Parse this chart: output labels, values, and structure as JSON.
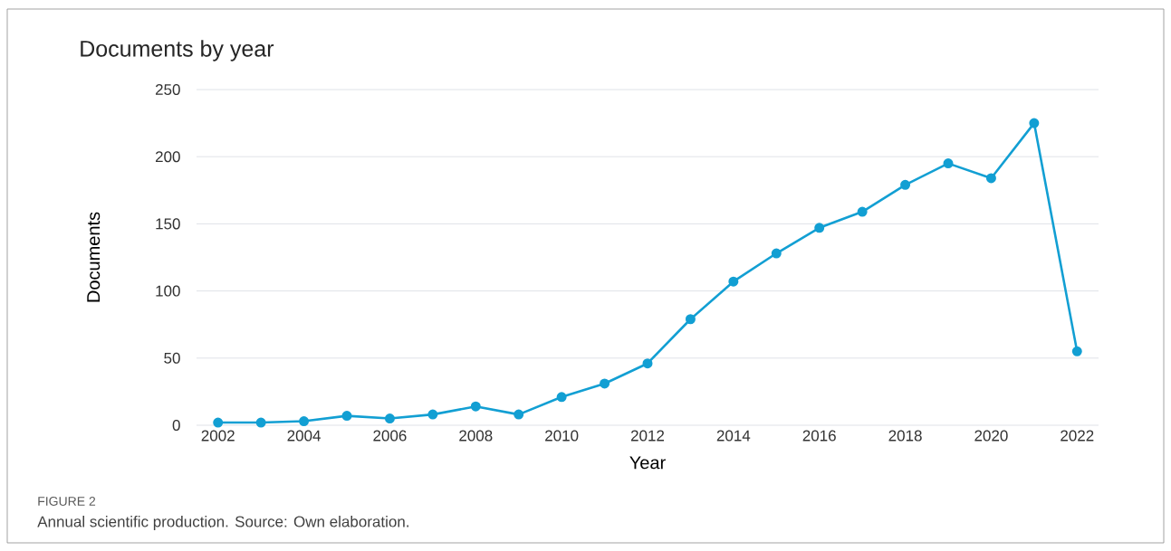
{
  "chart_data": {
    "type": "line",
    "title": "Documents by year",
    "xlabel": "Year",
    "ylabel": "Documents",
    "x": [
      2002,
      2003,
      2004,
      2005,
      2006,
      2007,
      2008,
      2009,
      2010,
      2011,
      2012,
      2013,
      2014,
      2015,
      2016,
      2017,
      2018,
      2019,
      2020,
      2021,
      2022
    ],
    "series": [
      {
        "color": "#129fd3",
        "values": [
          2,
          2,
          3,
          7,
          5,
          8,
          14,
          8,
          21,
          31,
          46,
          79,
          107,
          128,
          147,
          159,
          179,
          195,
          184,
          225,
          55
        ]
      }
    ],
    "xlim": [
      2001.5,
      2022.5
    ],
    "xticks": [
      2002,
      2004,
      2006,
      2008,
      2010,
      2012,
      2014,
      2016,
      2018,
      2020,
      2022
    ],
    "ylim": [
      0,
      250
    ],
    "yticks": [
      0,
      50,
      100,
      150,
      200,
      250
    ],
    "grid": "y",
    "marker": "circle",
    "line_style": "solid",
    "annotations": [
      "FIGURE 2",
      "Annual scientific production. Source: Own elaboration."
    ]
  }
}
